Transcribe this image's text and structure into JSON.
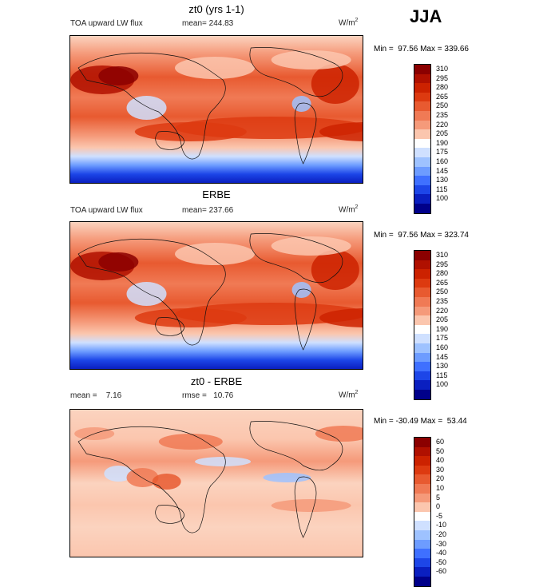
{
  "season": "JJA",
  "panels": [
    {
      "title": "zt0 (yrs 1-1)",
      "left_label": "TOA upward LW flux",
      "mid_label": "mean= 244.83",
      "unit": "W/m",
      "minmax": "Min =  97.56 Max = 339.66",
      "levels": [
        "310",
        "295",
        "280",
        "265",
        "250",
        "235",
        "220",
        "205",
        "190",
        "175",
        "160",
        "145",
        "130",
        "115",
        "100"
      ],
      "colors": [
        "#8b0000",
        "#b01000",
        "#cc2200",
        "#dd3a10",
        "#e85a30",
        "#f07a55",
        "#f59a7a",
        "#fbc6ae",
        "#ffffff",
        "#cfe0ff",
        "#9ec2ff",
        "#6d9cff",
        "#3f70ff",
        "#1d46e8",
        "#0a1fc0",
        "#00008a"
      ]
    },
    {
      "title": "ERBE",
      "left_label": "TOA upward LW flux",
      "mid_label": "mean= 237.66",
      "unit": "W/m",
      "minmax": "Min =  97.56 Max = 323.74",
      "levels": [
        "310",
        "295",
        "280",
        "265",
        "250",
        "235",
        "220",
        "205",
        "190",
        "175",
        "160",
        "145",
        "130",
        "115",
        "100"
      ],
      "colors": [
        "#8b0000",
        "#b01000",
        "#cc2200",
        "#dd3a10",
        "#e85a30",
        "#f07a55",
        "#f59a7a",
        "#fbc6ae",
        "#ffffff",
        "#cfe0ff",
        "#9ec2ff",
        "#6d9cff",
        "#3f70ff",
        "#1d46e8",
        "#0a1fc0",
        "#00008a"
      ]
    },
    {
      "title": "zt0 - ERBE",
      "left_label": "mean =    7.16",
      "mid_label": "rmse =   10.76",
      "unit": "W/m",
      "minmax": "Min = -30.49 Max =  53.44",
      "levels": [
        "60",
        "50",
        "40",
        "30",
        "20",
        "10",
        "5",
        "0",
        "-5",
        "-10",
        "-20",
        "-30",
        "-40",
        "-50",
        "-60"
      ],
      "colors": [
        "#8b0000",
        "#b01000",
        "#cc2200",
        "#dd3a10",
        "#e85a30",
        "#f07a55",
        "#f59a7a",
        "#fbc6ae",
        "#ffffff",
        "#cfe0ff",
        "#9ec2ff",
        "#6d9cff",
        "#3f70ff",
        "#1d46e8",
        "#0a1fc0",
        "#00008a"
      ]
    }
  ]
}
